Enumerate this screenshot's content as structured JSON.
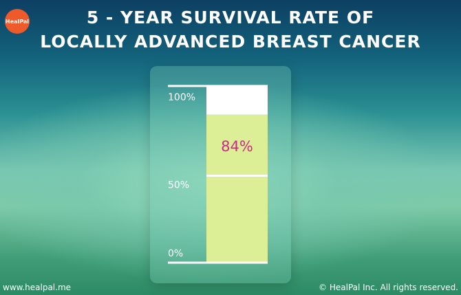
{
  "brand": {
    "logo_text": "HealPal",
    "logo_color": "#ef5a2a"
  },
  "title_lines": [
    "5 - YEAR SURVIVAL RATE OF",
    "LOCALLY ADVANCED BREAST CANCER"
  ],
  "footer": {
    "website": "www.healpal.me",
    "copyright": "© HealPal Inc. All rights reserved."
  },
  "chart_data": {
    "type": "bar",
    "categories": [
      ""
    ],
    "values": [
      84
    ],
    "data_labels": [
      "84%"
    ],
    "ylim": [
      0,
      100
    ],
    "yticks": [
      0,
      50,
      100
    ],
    "ytick_labels": [
      "0%",
      "50%",
      "100%"
    ],
    "bar_color": "#ddef96",
    "remainder_color": "#ffffff",
    "label_color": "#cc2a8a",
    "grid": false
  }
}
